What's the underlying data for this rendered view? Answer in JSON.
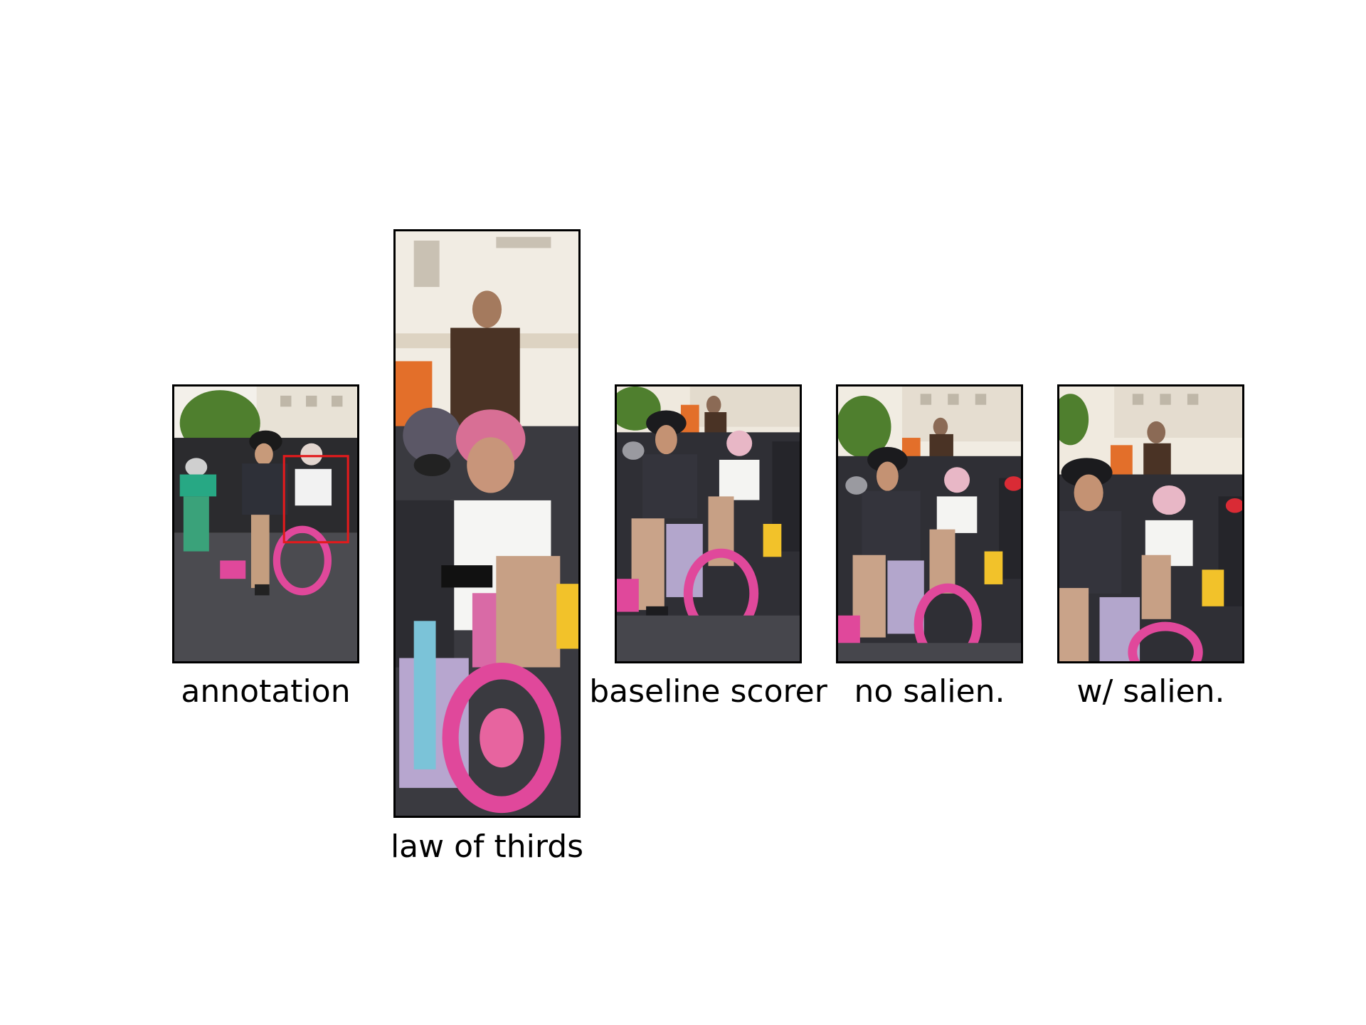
{
  "figure": {
    "panels": [
      {
        "key": "annotation",
        "caption": "annotation",
        "has_annotation_box": true,
        "box_color": "#e31a1c"
      },
      {
        "key": "law_of_thirds",
        "caption": "law of thirds"
      },
      {
        "key": "baseline_scorer",
        "caption": "baseline scorer"
      },
      {
        "key": "no_salien",
        "caption": "no salien."
      },
      {
        "key": "w_salien",
        "caption": "w/ salien."
      }
    ]
  }
}
